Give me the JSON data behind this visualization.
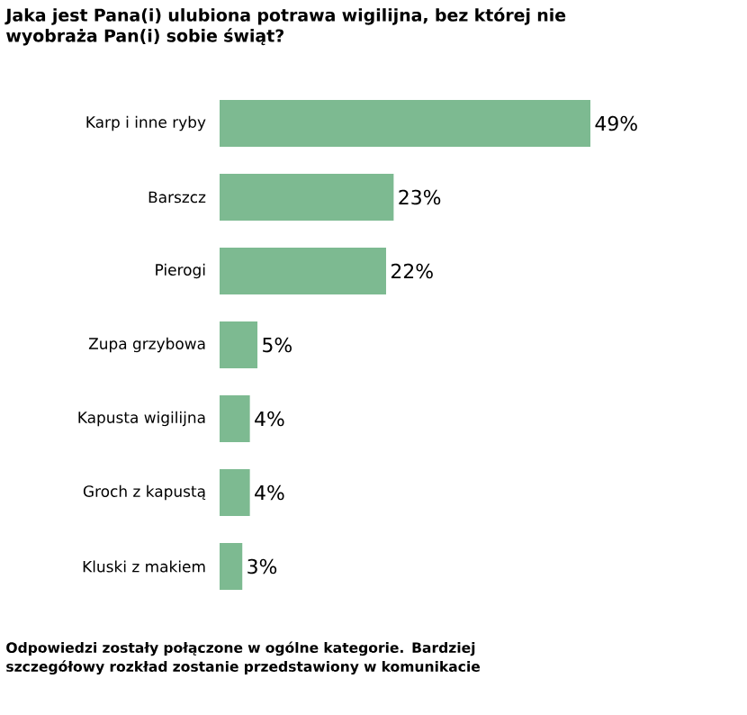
{
  "chart_data": {
    "type": "bar",
    "orientation": "horizontal",
    "title": "Jaka jest Pana(i) ulubiona potrawa wigilijna, bez której nie wyobraża Pan(i) sobie świąt?",
    "categories": [
      "Karp i inne ryby",
      "Barszcz",
      "Pierogi",
      "Zupa grzybowa",
      "Kapusta wigilijna",
      "Groch z kapustą",
      "Kluski z makiem"
    ],
    "values": [
      49,
      23,
      22,
      5,
      4,
      4,
      3
    ],
    "value_labels": [
      "49%",
      "23%",
      "22%",
      "5%",
      "4%",
      "4%",
      "3%"
    ],
    "color": "#7dba91",
    "annotations": [
      "Odpowiedzi zostały połączone w ogólne kategorie. Bardziej szczegółowy rozkład zostanie przedstawiony w komunikacie"
    ]
  }
}
